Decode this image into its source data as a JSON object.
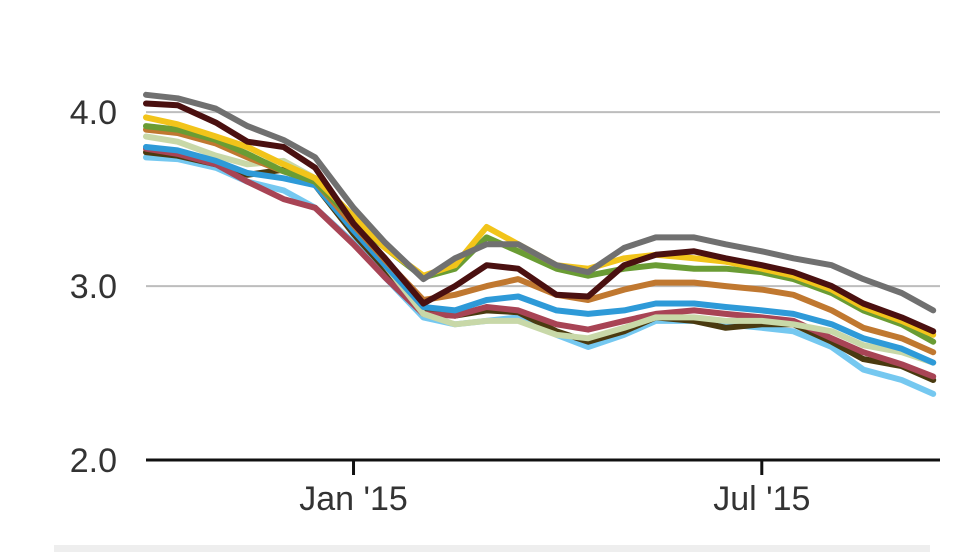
{
  "chart_data": {
    "type": "line",
    "title": "",
    "xlabel": "",
    "ylabel": "",
    "x": [
      "2014-10-01",
      "2014-10-15",
      "2014-11-01",
      "2014-11-15",
      "2014-12-01",
      "2014-12-15",
      "2015-01-01",
      "2015-01-15",
      "2015-02-01",
      "2015-02-15",
      "2015-03-01",
      "2015-03-15",
      "2015-04-01",
      "2015-04-15",
      "2015-05-01",
      "2015-05-15",
      "2015-06-01",
      "2015-06-15",
      "2015-07-01",
      "2015-07-15",
      "2015-08-01",
      "2015-08-15",
      "2015-09-01",
      "2015-09-15"
    ],
    "xlim": [
      "2014-10-01",
      "2015-09-18"
    ],
    "ylim": [
      2.0,
      4.3
    ],
    "y_ticks": [
      {
        "value": 2.0,
        "label": "2.0"
      },
      {
        "value": 3.0,
        "label": "3.0"
      },
      {
        "value": 4.0,
        "label": "4.0"
      }
    ],
    "x_ticks": [
      {
        "value": "2015-01-01",
        "label": "Jan '15"
      },
      {
        "value": "2015-07-01",
        "label": "Jul '15"
      }
    ],
    "grid": true,
    "legend": "none",
    "series": [
      {
        "color": "#75c8f0",
        "values": [
          3.74,
          3.73,
          3.68,
          3.6,
          3.55,
          3.45,
          3.25,
          3.05,
          2.82,
          2.78,
          2.8,
          2.82,
          2.72,
          2.65,
          2.72,
          2.8,
          2.8,
          2.78,
          2.76,
          2.74,
          2.65,
          2.52,
          2.46,
          2.38
        ]
      },
      {
        "color": "#4a3a10",
        "values": [
          3.77,
          3.75,
          3.7,
          3.64,
          3.67,
          3.58,
          3.3,
          3.1,
          2.86,
          2.83,
          2.86,
          2.85,
          2.74,
          2.68,
          2.74,
          2.82,
          2.8,
          2.76,
          2.78,
          2.78,
          2.68,
          2.58,
          2.54,
          2.46
        ]
      },
      {
        "color": "#a84455",
        "values": [
          3.79,
          3.76,
          3.7,
          3.6,
          3.5,
          3.45,
          3.24,
          3.05,
          2.84,
          2.83,
          2.88,
          2.86,
          2.78,
          2.75,
          2.8,
          2.84,
          2.86,
          2.84,
          2.82,
          2.8,
          2.7,
          2.62,
          2.55,
          2.48
        ]
      },
      {
        "color": "#c8d8a8",
        "values": [
          3.86,
          3.83,
          3.75,
          3.7,
          3.72,
          3.62,
          3.35,
          3.12,
          2.84,
          2.78,
          2.8,
          2.8,
          2.72,
          2.7,
          2.76,
          2.82,
          2.82,
          2.8,
          2.8,
          2.78,
          2.74,
          2.66,
          2.62,
          2.56
        ]
      },
      {
        "color": "#2e9ad8",
        "values": [
          3.8,
          3.78,
          3.72,
          3.65,
          3.62,
          3.58,
          3.32,
          3.12,
          2.88,
          2.86,
          2.92,
          2.94,
          2.86,
          2.84,
          2.86,
          2.9,
          2.9,
          2.88,
          2.86,
          2.84,
          2.78,
          2.7,
          2.64,
          2.56
        ]
      },
      {
        "color": "#c07830",
        "values": [
          3.9,
          3.88,
          3.82,
          3.74,
          3.66,
          3.6,
          3.35,
          3.15,
          2.92,
          2.95,
          3.0,
          3.04,
          2.95,
          2.92,
          2.98,
          3.02,
          3.02,
          3.0,
          2.98,
          2.95,
          2.86,
          2.76,
          2.7,
          2.62
        ]
      },
      {
        "color": "#6a9c34",
        "values": [
          3.92,
          3.9,
          3.84,
          3.76,
          3.66,
          3.6,
          3.38,
          3.22,
          3.05,
          3.1,
          3.28,
          3.2,
          3.1,
          3.06,
          3.1,
          3.12,
          3.1,
          3.1,
          3.08,
          3.04,
          2.96,
          2.86,
          2.78,
          2.68
        ]
      },
      {
        "color": "#f2c41a",
        "values": [
          3.97,
          3.93,
          3.86,
          3.8,
          3.7,
          3.62,
          3.4,
          3.22,
          3.06,
          3.12,
          3.34,
          3.24,
          3.12,
          3.1,
          3.16,
          3.18,
          3.16,
          3.14,
          3.1,
          3.06,
          2.98,
          2.88,
          2.8,
          2.72
        ]
      },
      {
        "color": "#4a1010",
        "values": [
          4.05,
          4.04,
          3.94,
          3.83,
          3.8,
          3.68,
          3.36,
          3.16,
          2.9,
          3.0,
          3.12,
          3.1,
          2.95,
          2.94,
          3.12,
          3.18,
          3.2,
          3.16,
          3.12,
          3.08,
          3.0,
          2.9,
          2.82,
          2.74
        ]
      },
      {
        "color": "#707070",
        "values": [
          4.1,
          4.08,
          4.02,
          3.92,
          3.84,
          3.74,
          3.45,
          3.25,
          3.04,
          3.16,
          3.24,
          3.24,
          3.12,
          3.08,
          3.22,
          3.28,
          3.28,
          3.24,
          3.2,
          3.16,
          3.12,
          3.04,
          2.96,
          2.86
        ]
      }
    ]
  }
}
